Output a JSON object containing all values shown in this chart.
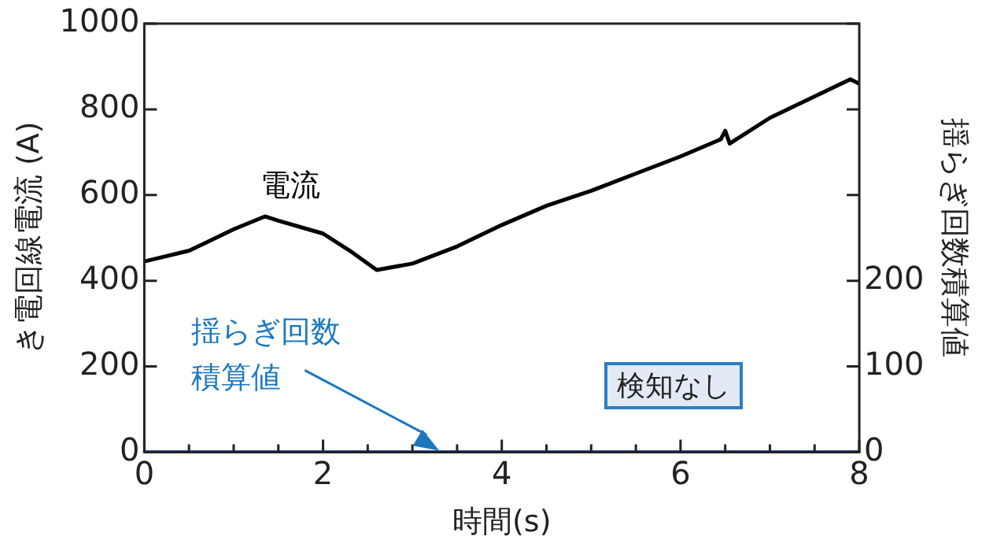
{
  "chart_data": {
    "type": "line",
    "xlabel": "時間(s)",
    "ylabel": "き電回線電流 (A)",
    "y2label": "揺らぎ回数積算値",
    "xlim": [
      0,
      8
    ],
    "xticks": [
      0,
      {
        "value": 0.5,
        "label": null
      },
      {
        "value": 1,
        "label": null
      },
      {
        "value": 1.5,
        "label": null
      },
      2,
      {
        "value": 2.5,
        "label": null
      },
      {
        "value": 3,
        "label": null
      },
      {
        "value": 3.5,
        "label": null
      },
      4,
      {
        "value": 4.5,
        "label": null
      },
      {
        "value": 5,
        "label": null
      },
      {
        "value": 5.5,
        "label": null
      },
      6,
      {
        "value": 6.5,
        "label": null
      },
      {
        "value": 7,
        "label": null
      },
      {
        "value": 7.5,
        "label": null
      },
      8
    ],
    "ylim": [
      0,
      1000
    ],
    "yticks": [
      0,
      200,
      400,
      600,
      800,
      1000
    ],
    "y2lim": [
      0,
      500
    ],
    "y2ticks": [
      0,
      100,
      200,
      {
        "value": 300,
        "label": null
      },
      {
        "value": 400,
        "label": null
      },
      {
        "value": 500,
        "label": null
      }
    ],
    "grid": false,
    "legend": false,
    "marker": "none",
    "line_style": "solid",
    "annotations": [
      "検知なし"
    ],
    "series": [
      {
        "name": "電流",
        "color": "#000000",
        "x": [
          0,
          0.5,
          1,
          1.35,
          1.5,
          2,
          2.3,
          2.6,
          3,
          3.5,
          4,
          4.5,
          5,
          5.5,
          6,
          6.45,
          6.5,
          6.55,
          7,
          7.5,
          7.9,
          8
        ],
        "values": [
          445,
          470,
          520,
          550,
          540,
          510,
          470,
          425,
          440,
          480,
          530,
          575,
          610,
          650,
          690,
          730,
          750,
          720,
          780,
          830,
          870,
          860
        ]
      },
      {
        "name": "揺らぎ回数積算値",
        "color": "#2a4fa0",
        "axis": "y2",
        "x": [
          0,
          8
        ],
        "values": [
          0,
          0
        ]
      }
    ]
  }
}
